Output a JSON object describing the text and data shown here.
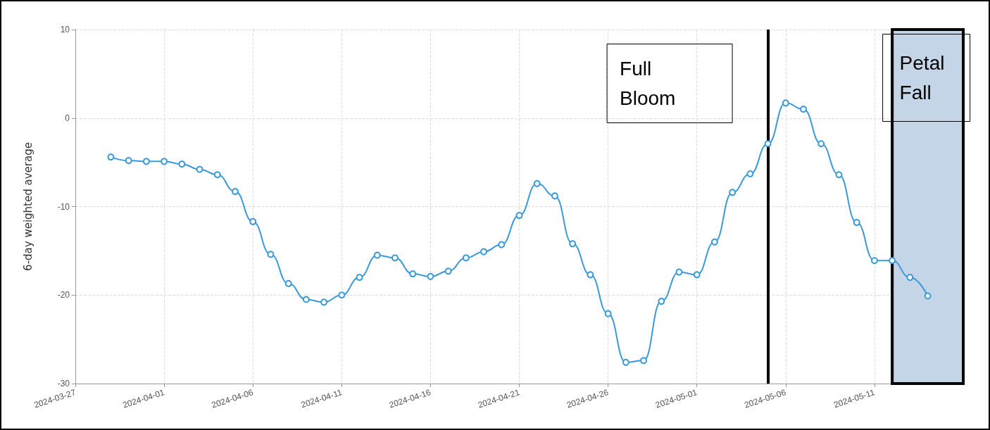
{
  "chart_data": {
    "type": "line",
    "ylabel": "6-day weighted average",
    "x": [
      "2024-03-29",
      "2024-03-30",
      "2024-03-31",
      "2024-04-01",
      "2024-04-02",
      "2024-04-03",
      "2024-04-04",
      "2024-04-05",
      "2024-04-06",
      "2024-04-07",
      "2024-04-08",
      "2024-04-09",
      "2024-04-10",
      "2024-04-11",
      "2024-04-12",
      "2024-04-13",
      "2024-04-14",
      "2024-04-15",
      "2024-04-16",
      "2024-04-17",
      "2024-04-18",
      "2024-04-19",
      "2024-04-20",
      "2024-04-21",
      "2024-04-22",
      "2024-04-23",
      "2024-04-24",
      "2024-04-25",
      "2024-04-26",
      "2024-04-27",
      "2024-04-28",
      "2024-04-29",
      "2024-04-30",
      "2024-05-01",
      "2024-05-02",
      "2024-05-03",
      "2024-05-04",
      "2024-05-05",
      "2024-05-06",
      "2024-05-07",
      "2024-05-08",
      "2024-05-09",
      "2024-05-10",
      "2024-05-11",
      "2024-05-12",
      "2024-05-13",
      "2024-05-14"
    ],
    "series": [
      {
        "color": "#3a9ad9",
        "values": [
          -4.4,
          -4.8,
          -4.9,
          -4.9,
          -5.2,
          -5.8,
          -6.4,
          -8.3,
          -11.7,
          -15.4,
          -18.7,
          -20.5,
          -20.8,
          -20.0,
          -18.0,
          -15.5,
          -15.8,
          -17.6,
          -17.9,
          -17.3,
          -15.8,
          -15.1,
          -14.3,
          -11.0,
          -7.4,
          -8.8,
          -14.2,
          -17.7,
          -22.1,
          -27.6,
          -27.4,
          -20.7,
          -17.4,
          -17.7,
          -14.0,
          -8.4,
          -6.3,
          -2.9,
          1.7,
          1.0,
          -2.9,
          -6.4,
          -11.8,
          -16.1,
          -16.1,
          -18.0,
          -20.1
        ]
      }
    ],
    "xlim": [
      "2024-03-27",
      "2024-05-16"
    ],
    "xticks": [
      "2024-03-27",
      "2024-04-01",
      "2024-04-06",
      "2024-04-11",
      "2024-04-16",
      "2024-04-21",
      "2024-04-26",
      "2024-05-01",
      "2024-05-06",
      "2024-05-11"
    ],
    "ylim": [
      -30,
      10
    ],
    "yticks": [
      -30,
      -20,
      -10,
      0,
      10
    ],
    "grid": true,
    "marker": "circle",
    "line_style": "solid",
    "annotations": [
      "Full Bloom"
    ],
    "ref_lines": [
      {
        "axis": "x",
        "value": "2024-05-05",
        "color": "#000000"
      }
    ],
    "bands": [
      {
        "axis": "x",
        "from": "2024-05-12",
        "to": "2024-05-16",
        "label": "Petal Fall",
        "color": "#c5d5e8"
      }
    ]
  }
}
